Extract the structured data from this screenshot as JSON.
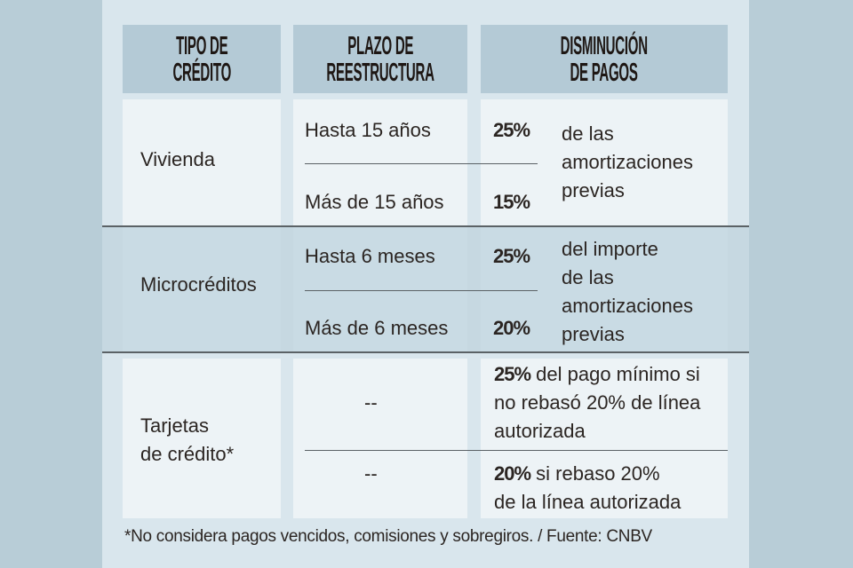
{
  "headers": [
    "TIPO DE CRÉDITO",
    "PLAZO DE REESTRUCTURA",
    "DISMINUCIÓN DE PAGOS"
  ],
  "headers_lines": [
    [
      "TIPO DE",
      "CRÉDITO"
    ],
    [
      "PLAZO DE",
      "REESTRUCTURA"
    ],
    [
      "DISMINUCIÓN",
      "DE PAGOS"
    ]
  ],
  "rows": [
    {
      "tipo": "Vivienda",
      "plazos": [
        "Hasta 15 años",
        "Más de 15 años"
      ],
      "porcentajes": [
        "25%",
        "15%"
      ],
      "descripcion": [
        "de las",
        "amortizaciones",
        "previas"
      ]
    },
    {
      "tipo": "Microcréditos",
      "plazos": [
        "Hasta 6 meses",
        "Más de 6 meses"
      ],
      "porcentajes": [
        "25%",
        "20%"
      ],
      "descripcion": [
        "del importe",
        "de las",
        "amortizaciones",
        "previas"
      ]
    },
    {
      "tipo_lines": [
        "Tarjetas",
        "de crédito*"
      ],
      "plazos": [
        "--",
        "--"
      ],
      "items": [
        {
          "pct": "25%",
          "lines": [
            " del pago mínimo si",
            "no rebasó 20% de línea",
            "autorizada"
          ]
        },
        {
          "pct": "20%",
          "lines": [
            " si rebaso 20%",
            "de la línea autorizada"
          ]
        }
      ]
    }
  ],
  "footnote": "*No considera pagos vencidos, comisiones y sobregiros. / Fuente: CNBV"
}
